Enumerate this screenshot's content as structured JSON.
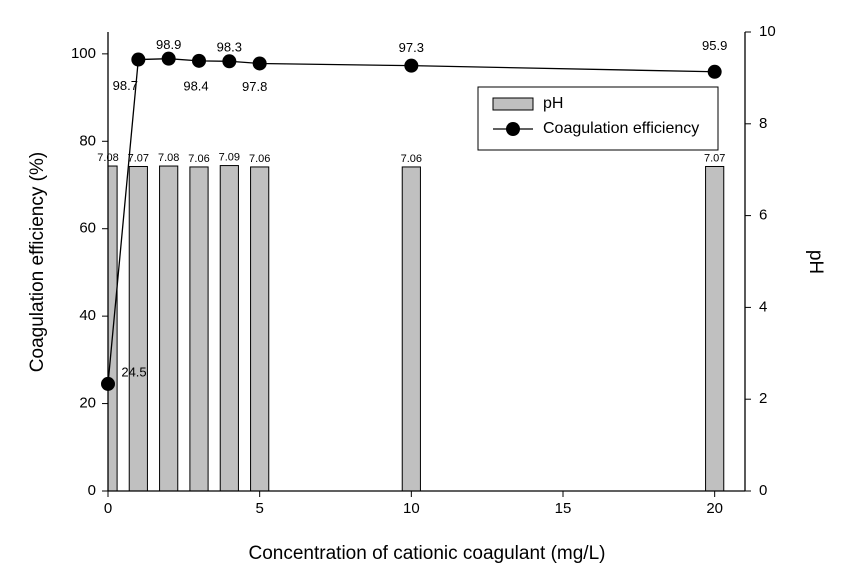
{
  "chart_data": {
    "type": "combo",
    "xlabel": "Concentration of cationic coagulant (mg/L)",
    "ylabel": "Coagulation efficiency (%)",
    "y2label": "pH",
    "x": [
      0,
      1,
      2,
      3,
      4,
      5,
      10,
      20
    ],
    "series": [
      {
        "name": "pH",
        "type": "bar",
        "axis": "y2",
        "color": "#c0c0c0",
        "values": [
          7.08,
          7.07,
          7.08,
          7.06,
          7.09,
          7.06,
          7.06,
          7.07
        ]
      },
      {
        "name": "Coagulation efficiency",
        "type": "line",
        "color": "#000000",
        "values": [
          24.5,
          98.7,
          98.9,
          98.4,
          98.3,
          97.8,
          97.3,
          95.9
        ]
      }
    ],
    "xlim": [
      0,
      21
    ],
    "xticks": [
      0,
      5,
      10,
      15,
      20
    ],
    "ylim": [
      0,
      105
    ],
    "yticks": [
      0,
      20,
      40,
      60,
      80,
      100
    ],
    "y2lim": [
      0,
      10
    ],
    "y2ticks": [
      0,
      2,
      4,
      6,
      8,
      10
    ],
    "legend": "upper right"
  }
}
